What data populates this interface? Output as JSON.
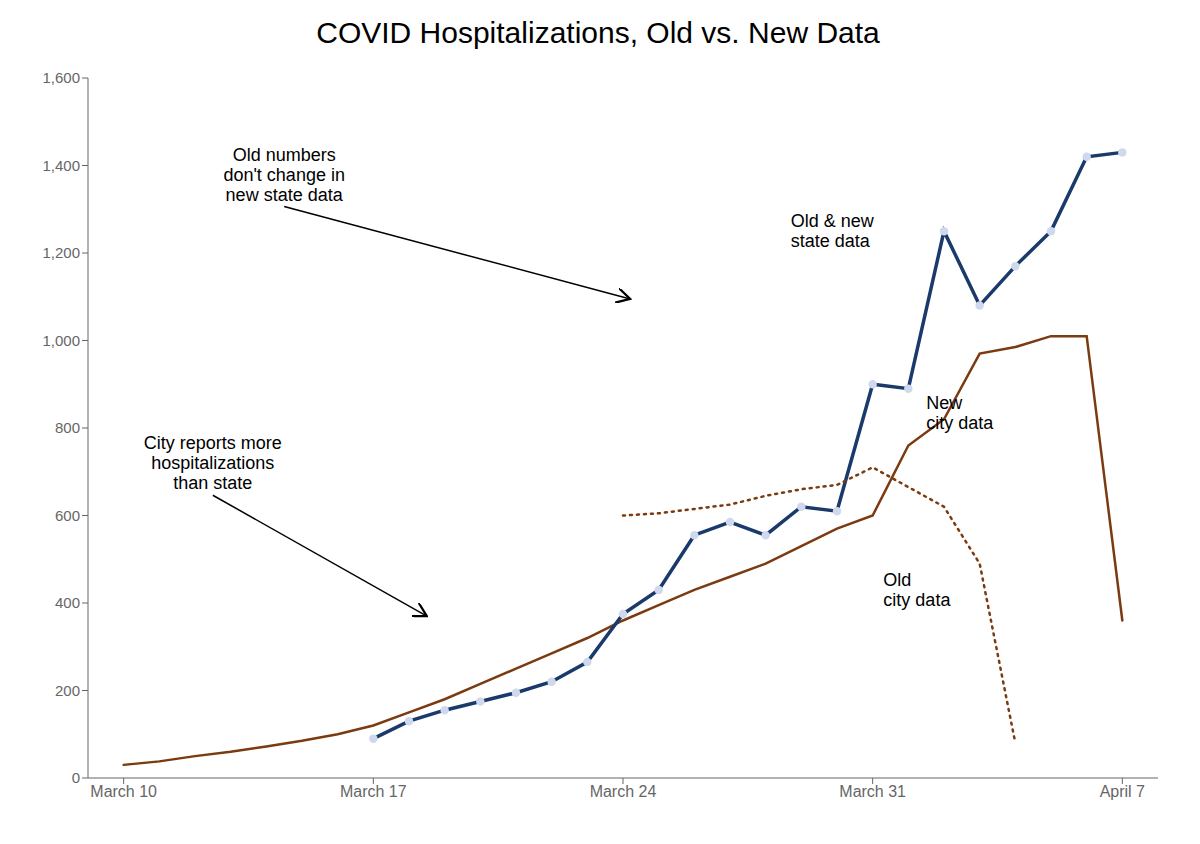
{
  "chart_data": {
    "type": "line",
    "title": "COVID Hospitalizations, Old vs. New Data",
    "xlim": [
      -1,
      29
    ],
    "xticks": [
      {
        "value": 0,
        "label": "March 10"
      },
      {
        "value": 7,
        "label": "March 17"
      },
      {
        "value": 14,
        "label": "March 24"
      },
      {
        "value": 21,
        "label": "March 31"
      },
      {
        "value": 28,
        "label": "April 7"
      }
    ],
    "ylim": [
      0,
      1600
    ],
    "yticks": [
      0,
      200,
      400,
      600,
      800,
      {
        "value": 1000,
        "label": "1,000"
      },
      {
        "value": 1200,
        "label": "1,200"
      },
      {
        "value": 1400,
        "label": "1,400"
      },
      {
        "value": 1600,
        "label": "1,600"
      }
    ],
    "grid": false,
    "series": [
      {
        "name": "New\ncity data",
        "color": "#7B3A10",
        "line_style": "solid",
        "x": [
          0,
          1,
          2,
          3,
          4,
          5,
          6,
          7,
          8,
          9,
          10,
          11,
          12,
          13,
          14,
          15,
          16,
          17,
          18,
          19,
          20,
          21,
          22,
          23,
          24,
          25,
          26,
          27,
          28
        ],
        "values": [
          30,
          38,
          50,
          60,
          72,
          85,
          100,
          120,
          150,
          180,
          215,
          250,
          285,
          320,
          360,
          395,
          430,
          460,
          490,
          530,
          570,
          600,
          760,
          820,
          970,
          985,
          1010,
          1010,
          360
        ]
      },
      {
        "name": "Old & new\nstate data",
        "color": "#1a3a6b",
        "line_style": "solid",
        "marker": "circle",
        "x": [
          7,
          8,
          9,
          10,
          11,
          12,
          13,
          14,
          15,
          16,
          17,
          18,
          19,
          20,
          21,
          22,
          23,
          24,
          25,
          26,
          27,
          28
        ],
        "values": [
          90,
          130,
          155,
          175,
          195,
          220,
          265,
          375,
          430,
          555,
          585,
          555,
          620,
          610,
          900,
          890,
          1250,
          1080,
          1170,
          1250,
          1420,
          1430
        ]
      },
      {
        "name": "Old\ncity data",
        "color": "#7B3A10",
        "line_style": "dotted",
        "x": [
          14,
          15,
          16,
          17,
          18,
          19,
          20,
          21,
          22,
          23,
          24,
          25
        ],
        "values": [
          600,
          605,
          615,
          625,
          645,
          660,
          670,
          710,
          665,
          620,
          490,
          80
        ]
      }
    ],
    "annotations": [
      {
        "text": "Old numbers\ndon't change in\nnew state data"
      },
      {
        "text": "City reports more\nhospitalizations\nthan state"
      }
    ]
  }
}
